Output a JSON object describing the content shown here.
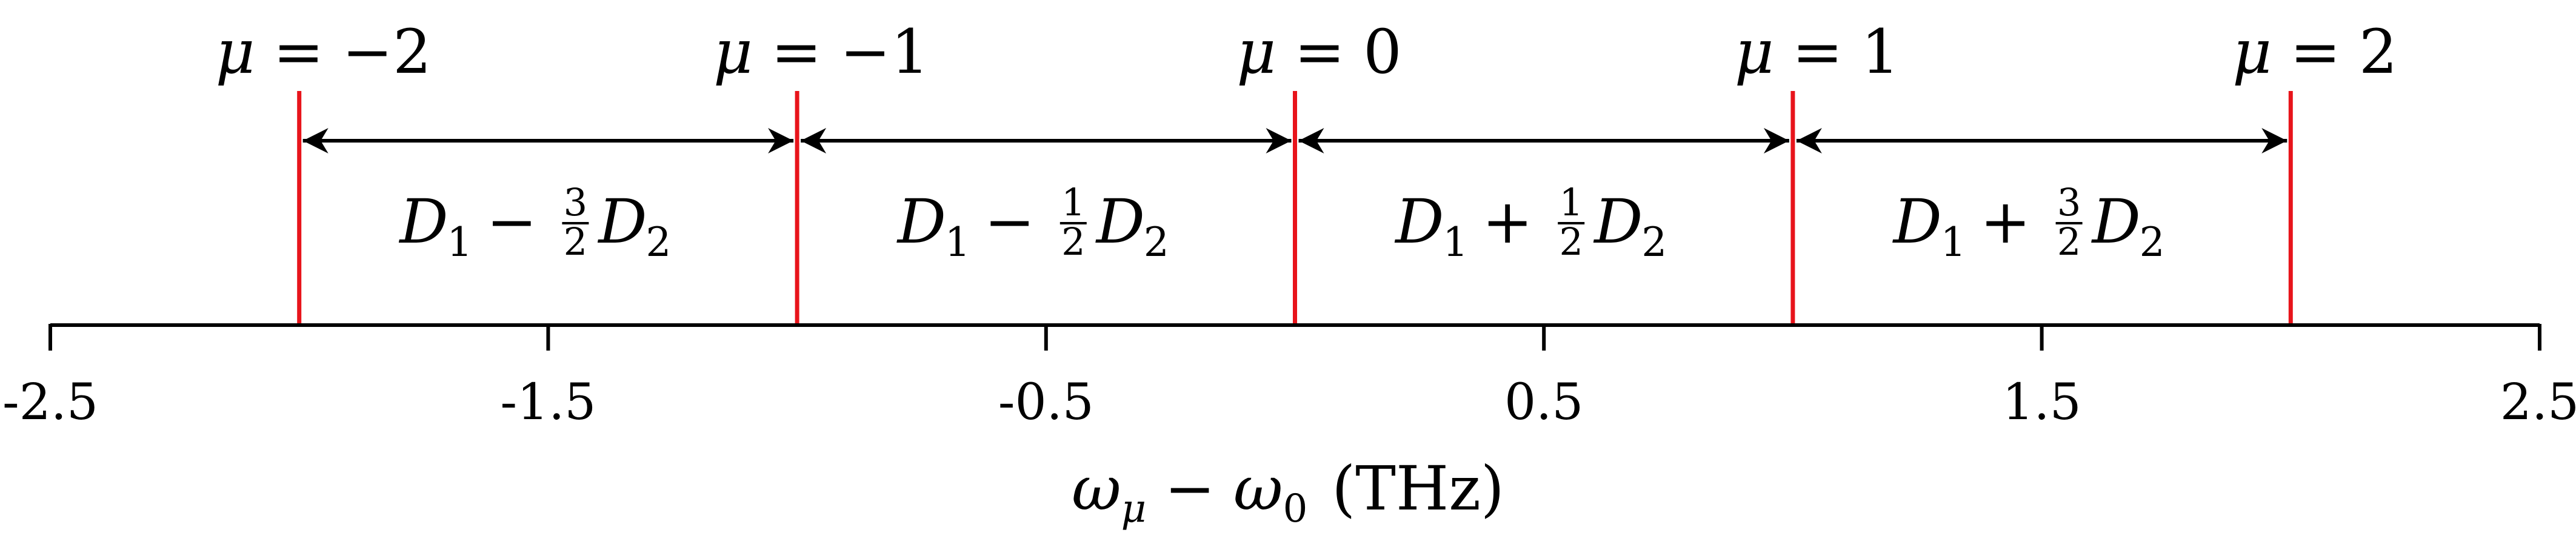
{
  "axis": {
    "ticks": [
      -2.5,
      -1.5,
      -0.5,
      0.5,
      1.5,
      2.5
    ],
    "tick_labels": [
      "-2.5",
      "-1.5",
      "-0.5",
      "0.5",
      "1.5",
      "2.5"
    ],
    "title": {
      "omega": "ω",
      "sub_mu": "μ",
      "minus": "−",
      "sub_0": "0",
      "unit": "(THz)"
    }
  },
  "modes": [
    {
      "mu_value": -2,
      "position": -2,
      "label_lhs": "μ",
      "label_eq": "=",
      "label_value": "−2"
    },
    {
      "mu_value": -1,
      "position": -1,
      "label_lhs": "μ",
      "label_eq": "=",
      "label_value": "−1"
    },
    {
      "mu_value": 0,
      "position": 0,
      "label_lhs": "μ",
      "label_eq": "=",
      "label_value": "0"
    },
    {
      "mu_value": 1,
      "position": 1,
      "label_lhs": "μ",
      "label_eq": "=",
      "label_value": "1"
    },
    {
      "mu_value": 2,
      "position": 2,
      "label_lhs": "μ",
      "label_eq": "=",
      "label_value": "2"
    }
  ],
  "spacings": [
    {
      "from": -2,
      "to": -1,
      "d1": "D",
      "d1_sub": "1",
      "op": "−",
      "frac_num": "3",
      "frac_den": "2",
      "d2": "D",
      "d2_sub": "2"
    },
    {
      "from": -1,
      "to": 0,
      "d1": "D",
      "d1_sub": "1",
      "op": "−",
      "frac_num": "1",
      "frac_den": "2",
      "d2": "D",
      "d2_sub": "2"
    },
    {
      "from": 0,
      "to": 1,
      "d1": "D",
      "d1_sub": "1",
      "op": "+",
      "frac_num": "1",
      "frac_den": "2",
      "d2": "D",
      "d2_sub": "2"
    },
    {
      "from": 1,
      "to": 2,
      "d1": "D",
      "d1_sub": "1",
      "op": "+",
      "frac_num": "3",
      "frac_den": "2",
      "d2": "D",
      "d2_sub": "2"
    }
  ],
  "colors": {
    "mode_line": "#e8141b",
    "axis": "#000000",
    "arrow": "#000000",
    "text": "#000000"
  }
}
